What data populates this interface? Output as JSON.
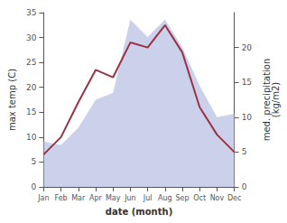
{
  "chart_data": {
    "type": "line",
    "categories": [
      "Jan",
      "Feb",
      "Mar",
      "Apr",
      "May",
      "Jun",
      "Jul",
      "Aug",
      "Sep",
      "Oct",
      "Nov",
      "Dec"
    ],
    "xlabel": "date (month)",
    "ylabel": "max temp (C)",
    "y2label": "med. precipitation\n(kg/m2)",
    "series": [
      {
        "type": "area",
        "color": "#b0b8e0",
        "axis": "y2",
        "values": [
          6.5,
          6.0,
          8.5,
          12.5,
          13.5,
          24.0,
          21.5,
          24.0,
          20.0,
          14.5,
          10.0,
          10.5
        ]
      },
      {
        "type": "line",
        "color": "#993344",
        "values": [
          6.5,
          10.0,
          17.0,
          23.5,
          22.0,
          29.0,
          28.0,
          32.5,
          27.0,
          16.0,
          10.5,
          7.0
        ]
      }
    ],
    "ylim": [
      0,
      35
    ],
    "yticks": [
      0,
      5,
      10,
      15,
      20,
      25,
      30,
      35
    ],
    "y2lim": [
      0,
      25
    ],
    "y2ticks": [
      0,
      5,
      10,
      15,
      20
    ],
    "grid": false
  }
}
